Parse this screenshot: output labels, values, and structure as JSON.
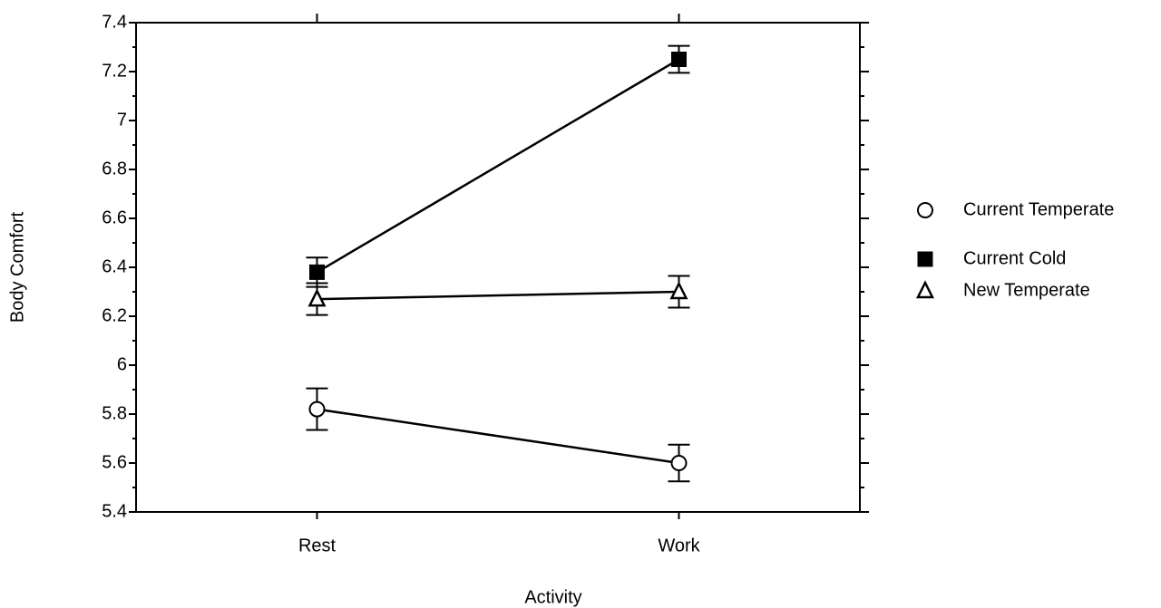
{
  "chart_data": {
    "type": "line",
    "x_label": "Activity",
    "y_label": "Body Comfort",
    "categories": [
      "Rest",
      "Work"
    ],
    "series": [
      {
        "name": "Current Temperate",
        "color": "#000000",
        "marker": "circle",
        "values": [
          5.82,
          5.6
        ],
        "errors": [
          0.085,
          0.075
        ]
      },
      {
        "name": "Current Cold",
        "color": "#000000",
        "marker": "square",
        "values": [
          6.38,
          7.25
        ],
        "errors": [
          0.06,
          0.055
        ]
      },
      {
        "name": "New Temperate",
        "color": "#000000",
        "marker": "triangle",
        "values": [
          6.27,
          6.3
        ],
        "errors": [
          0.065,
          0.065
        ]
      }
    ],
    "ylim": [
      5.4,
      7.4
    ],
    "yticks": [
      5.4,
      5.6,
      5.8,
      6,
      6.2,
      6.4,
      6.6,
      6.8,
      7,
      7.2,
      7.4
    ],
    "yminorticks": [
      5.5,
      5.7,
      5.9,
      6.1,
      6.3,
      6.5,
      6.7,
      6.9,
      7.1,
      7.3
    ],
    "grid": false,
    "legend": "right"
  }
}
